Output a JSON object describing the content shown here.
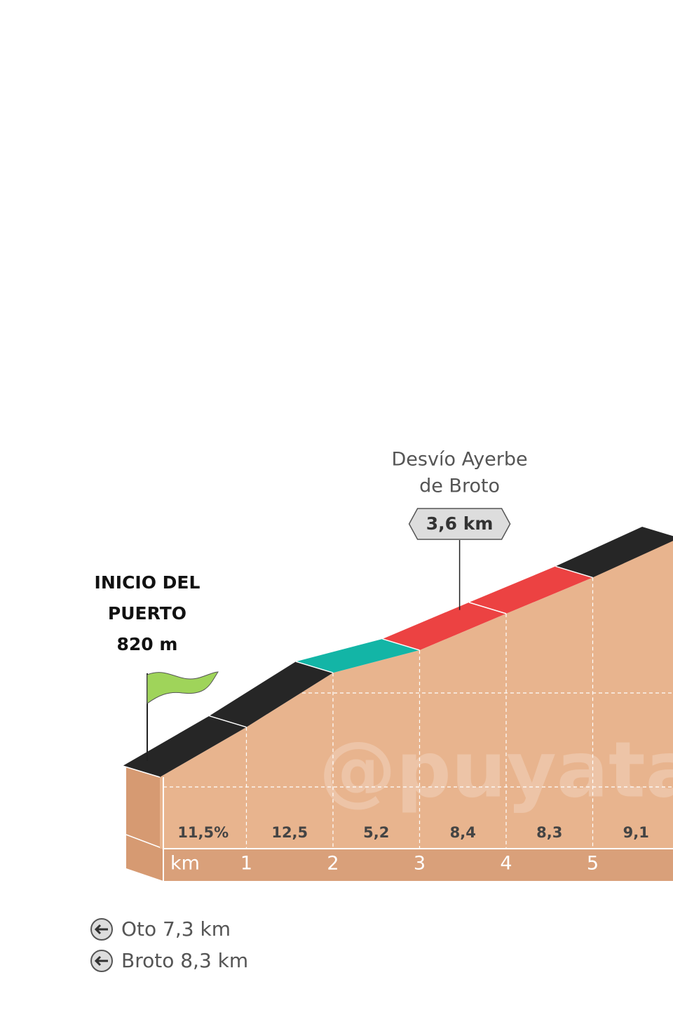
{
  "chart_data": {
    "type": "climb-profile",
    "start_label": [
      "INICIO DEL",
      "PUERTO",
      "820 m"
    ],
    "start_elevation": 820,
    "annotation": {
      "lines": [
        "Desvío Ayerbe",
        "de Broto"
      ],
      "label": "3,6 km",
      "x": 3.6
    },
    "x_label": "km",
    "xlim": [
      0,
      5.93
    ],
    "xticks": [
      1,
      2,
      3,
      4,
      5
    ],
    "values": [
      11.5,
      12.5,
      5.2,
      8.4,
      8.3,
      9.1
    ],
    "value_labels": [
      "11,5%",
      "12,5",
      "5,2",
      "8,4",
      "8,3",
      "9,1"
    ],
    "segment_colors": [
      "#262626",
      "#262626",
      "#13b5a6",
      "#ec4242",
      "#ec4242",
      "#262626"
    ],
    "watermark": "@puyata",
    "footer": [
      "Oto 7,3 km",
      "Broto 8,3 km"
    ]
  }
}
